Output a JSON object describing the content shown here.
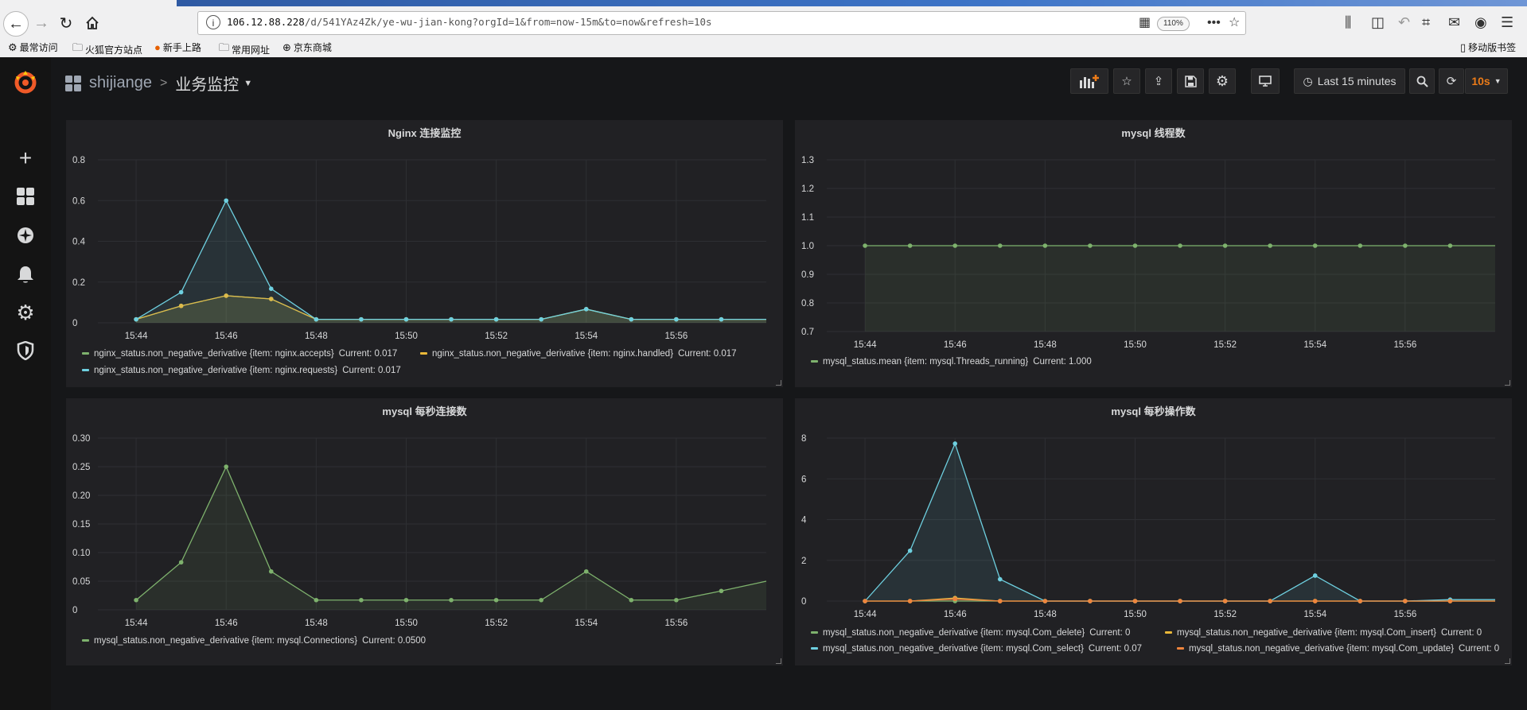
{
  "browser": {
    "url_host": "106.12.88.228",
    "url_path": "/d/541YAz4Zk/ye-wu-jian-kong?orgId=1&from=now-15m&to=now&refresh=10s",
    "zoom": "110%",
    "bookmarks": [
      "最常访问",
      "火狐官方站点",
      "新手上路",
      "常用网址",
      "京东商城"
    ],
    "mobile_bookmarks": "移动版书签"
  },
  "dashboard": {
    "folder": "shijiange",
    "title": "业务监控",
    "time_range": "Last 15 minutes",
    "refresh": "10s"
  },
  "colors": {
    "green": "#7eb26d",
    "yellow": "#eab839",
    "blue": "#6ed0e0",
    "orange": "#ef843c"
  },
  "panels": {
    "nginx": {
      "title": "Nginx 连接监控",
      "legend": [
        {
          "name": "nginx_status.non_negative_derivative {item: nginx.accepts}",
          "current": "Current: 0.017"
        },
        {
          "name": "nginx_status.non_negative_derivative {item: nginx.handled}",
          "current": "Current: 0.017"
        },
        {
          "name": "nginx_status.non_negative_derivative {item: nginx.requests}",
          "current": "Current: 0.017"
        }
      ]
    },
    "threads": {
      "title": "mysql 线程数",
      "legend": [
        {
          "name": "mysql_status.mean {item: mysql.Threads_running}",
          "current": "Current: 1.000"
        }
      ]
    },
    "connections": {
      "title": "mysql 每秒连接数",
      "legend": [
        {
          "name": "mysql_status.non_negative_derivative {item: mysql.Connections}",
          "current": "Current: 0.0500"
        }
      ]
    },
    "ops": {
      "title": "mysql 每秒操作数",
      "legend": [
        {
          "name": "mysql_status.non_negative_derivative {item: mysql.Com_delete}",
          "current": "Current: 0"
        },
        {
          "name": "mysql_status.non_negative_derivative {item: mysql.Com_insert}",
          "current": "Current: 0"
        },
        {
          "name": "mysql_status.non_negative_derivative {item: mysql.Com_select}",
          "current": "Current: 0.07"
        },
        {
          "name": "mysql_status.non_negative_derivative {item: mysql.Com_update}",
          "current": "Current: 0"
        }
      ]
    }
  },
  "chart_data": [
    {
      "type": "line",
      "title": "Nginx 连接监控",
      "x_ticks": [
        "15:44",
        "15:46",
        "15:48",
        "15:50",
        "15:52",
        "15:54",
        "15:56"
      ],
      "x": [
        "15:44",
        "15:45",
        "15:46",
        "15:47",
        "15:48",
        "15:49",
        "15:50",
        "15:51",
        "15:52",
        "15:53",
        "15:54",
        "15:55",
        "15:56",
        "15:57"
      ],
      "x_end": "15:58",
      "ylim": [
        0,
        0.8
      ],
      "y_ticks": [
        "0",
        "0.2",
        "0.4",
        "0.6",
        "0.8"
      ],
      "series": [
        {
          "name": "nginx_status.non_negative_derivative {item: nginx.accepts}",
          "color": "#7eb26d",
          "values": [
            0.017,
            0.083,
            0.133,
            0.117,
            0.017,
            0.017,
            0.017,
            0.017,
            0.017,
            0.017,
            0.067,
            0.017,
            0.017,
            0.017
          ]
        },
        {
          "name": "nginx_status.non_negative_derivative {item: nginx.handled}",
          "color": "#eab839",
          "values": [
            0.017,
            0.083,
            0.133,
            0.117,
            0.017,
            0.017,
            0.017,
            0.017,
            0.017,
            0.017,
            0.067,
            0.017,
            0.017,
            0.017
          ]
        },
        {
          "name": "nginx_status.non_negative_derivative {item: nginx.requests}",
          "color": "#6ed0e0",
          "values": [
            0.017,
            0.15,
            0.6,
            0.167,
            0.017,
            0.017,
            0.017,
            0.017,
            0.017,
            0.017,
            0.067,
            0.017,
            0.017,
            0.017
          ]
        }
      ]
    },
    {
      "type": "line",
      "title": "mysql 线程数",
      "x_ticks": [
        "15:44",
        "15:46",
        "15:48",
        "15:50",
        "15:52",
        "15:54",
        "15:56"
      ],
      "x": [
        "15:44",
        "15:45",
        "15:46",
        "15:47",
        "15:48",
        "15:49",
        "15:50",
        "15:51",
        "15:52",
        "15:53",
        "15:54",
        "15:55",
        "15:56",
        "15:57"
      ],
      "x_end": "15:58",
      "ylim": [
        0.7,
        1.3
      ],
      "y_ticks": [
        "0.7",
        "0.8",
        "0.9",
        "1.0",
        "1.1",
        "1.2",
        "1.3"
      ],
      "series": [
        {
          "name": "mysql_status.mean {item: mysql.Threads_running}",
          "color": "#7eb26d",
          "values": [
            1,
            1,
            1,
            1,
            1,
            1,
            1,
            1,
            1,
            1,
            1,
            1,
            1,
            1
          ]
        }
      ]
    },
    {
      "type": "line",
      "title": "mysql 每秒连接数",
      "x_ticks": [
        "15:44",
        "15:46",
        "15:48",
        "15:50",
        "15:52",
        "15:54",
        "15:56"
      ],
      "x": [
        "15:44",
        "15:45",
        "15:46",
        "15:47",
        "15:48",
        "15:49",
        "15:50",
        "15:51",
        "15:52",
        "15:53",
        "15:54",
        "15:55",
        "15:56",
        "15:57"
      ],
      "x_end": "15:58",
      "ylim": [
        0,
        0.3
      ],
      "y_ticks": [
        "0",
        "0.05",
        "0.10",
        "0.15",
        "0.20",
        "0.25",
        "0.30"
      ],
      "series": [
        {
          "name": "mysql_status.non_negative_derivative {item: mysql.Connections}",
          "color": "#7eb26d",
          "values": [
            0.017,
            0.083,
            0.25,
            0.067,
            0.017,
            0.017,
            0.017,
            0.017,
            0.017,
            0.017,
            0.067,
            0.017,
            0.017,
            0.033
          ],
          "end_value": 0.05
        }
      ]
    },
    {
      "type": "line",
      "title": "mysql 每秒操作数",
      "x_ticks": [
        "15:44",
        "15:46",
        "15:48",
        "15:50",
        "15:52",
        "15:54",
        "15:56"
      ],
      "x": [
        "15:44",
        "15:45",
        "15:46",
        "15:47",
        "15:48",
        "15:49",
        "15:50",
        "15:51",
        "15:52",
        "15:53",
        "15:54",
        "15:55",
        "15:56",
        "15:57"
      ],
      "x_end": "15:58",
      "ylim": [
        0,
        8
      ],
      "y_ticks": [
        "0",
        "2",
        "4",
        "6",
        "8"
      ],
      "series": [
        {
          "name": "mysql_status.non_negative_derivative {item: mysql.Com_delete}",
          "color": "#7eb26d",
          "values": [
            0,
            0,
            0,
            0,
            0,
            0,
            0,
            0,
            0,
            0,
            0,
            0,
            0,
            0
          ]
        },
        {
          "name": "mysql_status.non_negative_derivative {item: mysql.Com_insert}",
          "color": "#eab839",
          "values": [
            0,
            0,
            0.15,
            0,
            0,
            0,
            0,
            0,
            0,
            0,
            0,
            0,
            0,
            0
          ]
        },
        {
          "name": "mysql_status.non_negative_derivative {item: mysql.Com_select}",
          "color": "#6ed0e0",
          "values": [
            0,
            2.47,
            7.73,
            1.07,
            0,
            0,
            0,
            0,
            0,
            0,
            1.25,
            0,
            0,
            0.07
          ]
        },
        {
          "name": "mysql_status.non_negative_derivative {item: mysql.Com_update}",
          "color": "#ef843c",
          "values": [
            0,
            0,
            0.1,
            0,
            0,
            0,
            0,
            0,
            0,
            0,
            0,
            0,
            0,
            0
          ]
        }
      ]
    }
  ]
}
